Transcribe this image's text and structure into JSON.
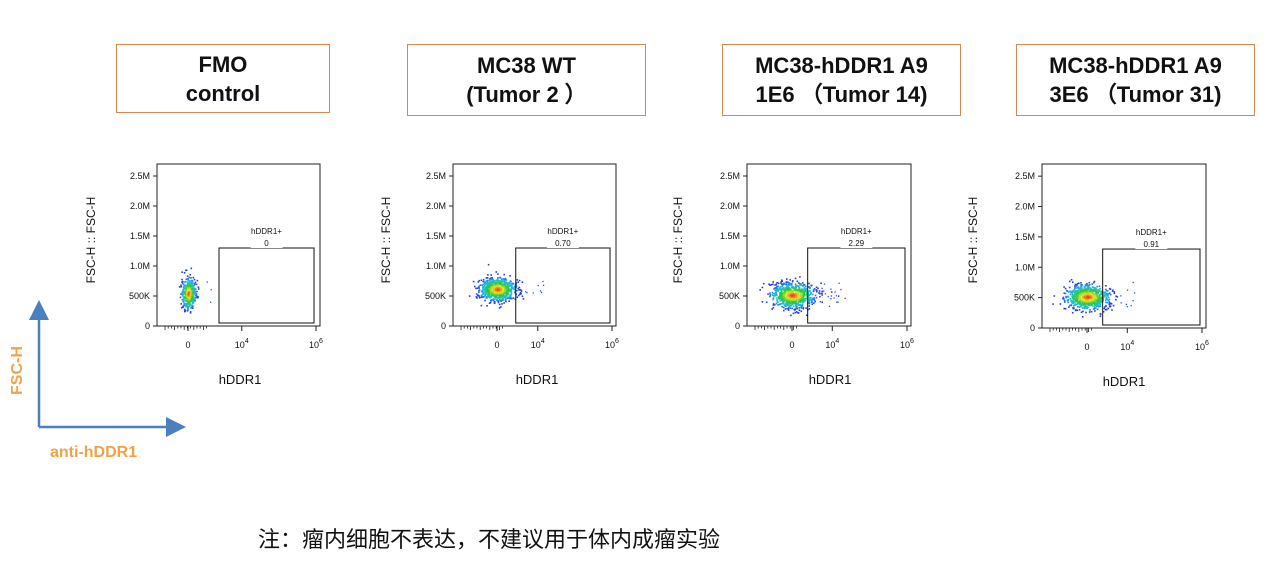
{
  "panels": [
    {
      "title_lines": [
        "FMO",
        "control"
      ],
      "gate_label": "hDDR1+",
      "gate_value": "0"
    },
    {
      "title_lines": [
        "MC38 WT",
        "(Tumor 2 ）"
      ],
      "gate_label": "hDDR1+",
      "gate_value": "0.70"
    },
    {
      "title_lines": [
        "MC38-hDDR1 A9",
        "1E6 （Tumor 14)"
      ],
      "gate_label": "hDDR1+",
      "gate_value": "2.29"
    },
    {
      "title_lines": [
        "MC38-hDDR1 A9",
        "3E6 （Tumor 31)"
      ],
      "gate_label": "hDDR1+",
      "gate_value": "0.91"
    }
  ],
  "legend": {
    "y_label": "FSC-H",
    "x_label": "anti-hDDR1",
    "color": "#f0a246",
    "arrow_color": "#4a7fc1"
  },
  "footnote": "注：瘤内细胞不表达，不建议用于体内成瘤实验",
  "chart_data": [
    {
      "type": "scatter",
      "title": "FMO control",
      "xlabel": "hDDR1",
      "ylabel": "FSC-H :: FSC-H",
      "y_ticks": [
        "0",
        "500K",
        "1.0M",
        "1.5M",
        "2.0M",
        "2.5M"
      ],
      "x_ticks": [
        "0",
        "10^4",
        "10^6"
      ],
      "ylim": [
        0,
        2700000
      ],
      "gate": {
        "name": "hDDR1+",
        "percent": 0,
        "y_range": [
          0,
          1300000
        ]
      },
      "cluster": {
        "y_center": 550000,
        "y_spread": 230000
      }
    },
    {
      "type": "scatter",
      "title": "MC38 WT (Tumor 2)",
      "xlabel": "hDDR1",
      "ylabel": "FSC-H :: FSC-H",
      "y_ticks": [
        "0",
        "500K",
        "1.0M",
        "1.5M",
        "2.0M",
        "2.5M"
      ],
      "x_ticks": [
        "0",
        "10^4",
        "10^6"
      ],
      "ylim": [
        0,
        2700000
      ],
      "gate": {
        "name": "hDDR1+",
        "percent": 0.7,
        "y_range": [
          0,
          1300000
        ]
      },
      "cluster": {
        "y_center": 620000,
        "y_spread": 170000
      }
    },
    {
      "type": "scatter",
      "title": "MC38-hDDR1 A9 1E6 (Tumor 14)",
      "xlabel": "hDDR1",
      "ylabel": "FSC-H :: FSC-H",
      "y_ticks": [
        "0",
        "500K",
        "1.0M",
        "1.5M",
        "2.0M",
        "2.5M"
      ],
      "x_ticks": [
        "0",
        "10^4",
        "10^6"
      ],
      "ylim": [
        0,
        2700000
      ],
      "gate": {
        "name": "hDDR1+",
        "percent": 2.29,
        "y_range": [
          0,
          1300000
        ]
      },
      "cluster": {
        "y_center": 520000,
        "y_spread": 180000
      }
    },
    {
      "type": "scatter",
      "title": "MC38-hDDR1 A9 3E6 (Tumor 31)",
      "xlabel": "hDDR1",
      "ylabel": "FSC-H :: FSC-H",
      "y_ticks": [
        "0",
        "500K",
        "1.0M",
        "1.5M",
        "2.0M",
        "2.5M"
      ],
      "x_ticks": [
        "0",
        "10^4",
        "10^6"
      ],
      "ylim": [
        0,
        2700000
      ],
      "gate": {
        "name": "hDDR1+",
        "percent": 0.91,
        "y_range": [
          0,
          1300000
        ]
      },
      "cluster": {
        "y_center": 520000,
        "y_spread": 180000
      }
    }
  ]
}
